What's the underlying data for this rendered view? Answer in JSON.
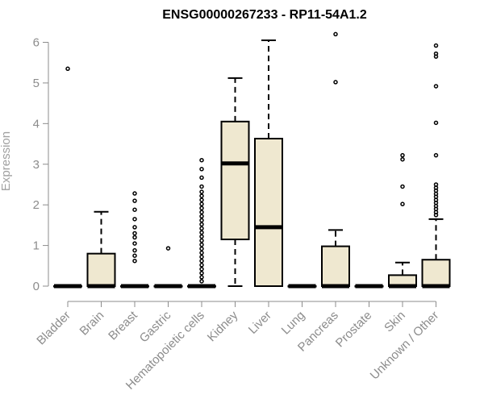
{
  "chart_data": {
    "type": "boxplot",
    "title": "ENSG00000267233 - RP11-54A1.2",
    "ylabel": "Expression",
    "xlabel": "",
    "ylim": [
      0,
      6
    ],
    "yticks": [
      0,
      1,
      2,
      3,
      4,
      5,
      6
    ],
    "box_color": "#efe8d0",
    "categories": [
      "Bladder",
      "Brain",
      "Breast",
      "Gastric",
      "Hematopoietic cells",
      "Kidney",
      "Liver",
      "Lung",
      "Pancreas",
      "Prostate",
      "Skin",
      "Unknown / Other"
    ],
    "boxes": [
      {
        "min": 0,
        "q1": 0,
        "median": 0,
        "q3": 0,
        "max": 0,
        "outliers": [
          5.35
        ]
      },
      {
        "min": 0,
        "q1": 0,
        "median": 0,
        "q3": 0.8,
        "max": 1.83,
        "outliers": []
      },
      {
        "min": 0,
        "q1": 0,
        "median": 0,
        "q3": 0,
        "max": 0,
        "outliers": [
          0.62,
          0.75,
          0.88,
          1.05,
          1.2,
          1.3,
          1.45,
          1.65,
          1.88,
          2.1,
          2.28
        ]
      },
      {
        "min": 0,
        "q1": 0,
        "median": 0,
        "q3": 0,
        "max": 0,
        "outliers": [
          0.93
        ]
      },
      {
        "min": 0,
        "q1": 0,
        "median": 0,
        "q3": 0,
        "max": 0,
        "outliers": [
          0.12,
          0.22,
          0.32,
          0.42,
          0.52,
          0.62,
          0.72,
          0.82,
          0.92,
          1.02,
          1.12,
          1.22,
          1.32,
          1.42,
          1.52,
          1.62,
          1.72,
          1.82,
          1.92,
          2.02,
          2.12,
          2.22,
          2.32,
          2.45,
          2.67,
          2.88,
          3.1
        ]
      },
      {
        "min": 0,
        "q1": 1.15,
        "median": 3.02,
        "q3": 4.05,
        "max": 5.12,
        "outliers": []
      },
      {
        "min": 0,
        "q1": 0,
        "median": 1.45,
        "q3": 3.63,
        "max": 6.05,
        "outliers": []
      },
      {
        "min": 0,
        "q1": 0,
        "median": 0,
        "q3": 0,
        "max": 0,
        "outliers": []
      },
      {
        "min": 0,
        "q1": 0,
        "median": 0,
        "q3": 0.98,
        "max": 1.38,
        "outliers": [
          5.02,
          6.2
        ]
      },
      {
        "min": 0,
        "q1": 0,
        "median": 0,
        "q3": 0,
        "max": 0,
        "outliers": []
      },
      {
        "min": 0,
        "q1": 0,
        "median": 0,
        "q3": 0.27,
        "max": 0.58,
        "outliers": [
          2.02,
          2.45,
          3.12,
          3.22
        ]
      },
      {
        "min": 0,
        "q1": 0,
        "median": 0,
        "q3": 0.65,
        "max": 1.65,
        "outliers": [
          1.75,
          1.82,
          1.9,
          1.97,
          2.05,
          2.12,
          2.2,
          2.27,
          2.35,
          2.42,
          2.5,
          3.22,
          4.02,
          4.92,
          5.65,
          5.72,
          5.92
        ]
      }
    ]
  }
}
